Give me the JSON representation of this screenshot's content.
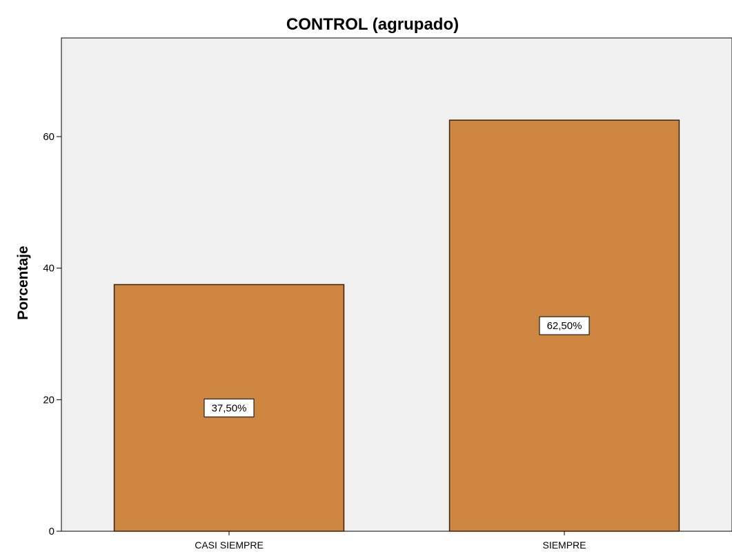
{
  "chart_data": {
    "type": "bar",
    "title": "CONTROL (agrupado)",
    "xlabel": "",
    "ylabel": "Porcentaje",
    "categories": [
      "CASI SIEMPRE",
      "SIEMPRE"
    ],
    "values": [
      37.5,
      62.5
    ],
    "data_labels": [
      "37,50%",
      "62,50%"
    ],
    "ylim": [
      0,
      75
    ],
    "yticks": [
      0,
      20,
      40,
      60
    ],
    "ytick_labels": [
      "0",
      "20",
      "40",
      "60"
    ],
    "grid": false,
    "legend": "none",
    "colors": {
      "bar_fill": "#cd853f",
      "bar_stroke": "#3a2410",
      "plot_background": "#f0f0f0",
      "axis": "#000000"
    }
  }
}
